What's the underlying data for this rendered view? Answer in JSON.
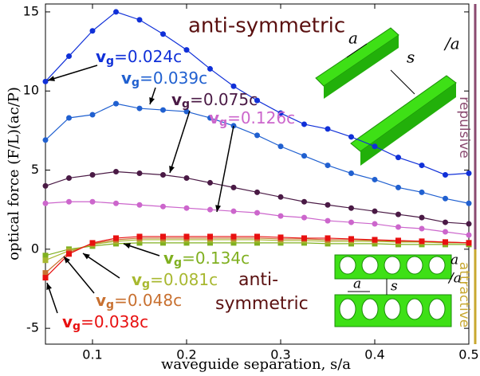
{
  "chart_data": {
    "type": "line",
    "xlabel": "waveguide separation, s/a",
    "ylabel": "optical force (F/L)(ac/P)",
    "xlim": [
      0.05,
      0.5
    ],
    "ylim": [
      -6,
      15.5
    ],
    "xticks": [
      0.1,
      0.2,
      0.3,
      0.4,
      0.5
    ],
    "yticks": [
      -5,
      0,
      5,
      10,
      15
    ],
    "grid": false,
    "x": [
      0.05,
      0.075,
      0.1,
      0.125,
      0.15,
      0.175,
      0.2,
      0.225,
      0.25,
      0.275,
      0.3,
      0.325,
      0.35,
      0.375,
      0.4,
      0.425,
      0.45,
      0.475,
      0.5
    ],
    "velocity_symbol": "v",
    "velocity_subscript": "g",
    "series": [
      {
        "name": "=0.024c",
        "color": "#1030d8",
        "marker": "circle",
        "values": [
          10.6,
          12.2,
          13.8,
          15.0,
          14.5,
          13.6,
          12.6,
          11.4,
          10.3,
          9.4,
          8.6,
          7.9,
          7.6,
          7.1,
          6.5,
          5.8,
          5.3,
          4.7,
          4.8
        ]
      },
      {
        "name": "=0.039c",
        "color": "#2060d0",
        "marker": "circle",
        "values": [
          6.9,
          8.3,
          8.5,
          9.2,
          8.9,
          8.8,
          8.7,
          8.3,
          7.8,
          7.2,
          6.5,
          5.9,
          5.3,
          4.8,
          4.4,
          3.9,
          3.6,
          3.2,
          2.9
        ]
      },
      {
        "name": "=0.075c",
        "color": "#4a1a45",
        "marker": "circle",
        "values": [
          4.0,
          4.5,
          4.7,
          4.9,
          4.8,
          4.7,
          4.5,
          4.2,
          3.9,
          3.6,
          3.3,
          3.0,
          2.8,
          2.6,
          2.4,
          2.2,
          2.0,
          1.7,
          1.6
        ]
      },
      {
        "name": "=0.126c",
        "color": "#cc66cc",
        "marker": "circle",
        "values": [
          2.9,
          3.0,
          3.0,
          2.9,
          2.8,
          2.7,
          2.6,
          2.5,
          2.4,
          2.3,
          2.1,
          2.0,
          1.8,
          1.7,
          1.6,
          1.4,
          1.3,
          1.1,
          0.9
        ]
      },
      {
        "name": "=0.134c",
        "color": "#80b020",
        "marker": "square",
        "values": [
          -0.4,
          0.0,
          0.2,
          0.35,
          0.4,
          0.4,
          0.4,
          0.4,
          0.4,
          0.4,
          0.4,
          0.4,
          0.35,
          0.35,
          0.35,
          0.3,
          0.3,
          0.3,
          0.3
        ]
      },
      {
        "name": "=0.081c",
        "color": "#a8b830",
        "marker": "square",
        "values": [
          -0.7,
          -0.1,
          0.3,
          0.5,
          0.6,
          0.6,
          0.6,
          0.6,
          0.6,
          0.6,
          0.55,
          0.55,
          0.5,
          0.5,
          0.5,
          0.45,
          0.45,
          0.4,
          0.4
        ]
      },
      {
        "name": "=0.048c",
        "color": "#c87030",
        "marker": "square",
        "values": [
          -1.5,
          -0.2,
          0.35,
          0.6,
          0.7,
          0.7,
          0.7,
          0.7,
          0.7,
          0.7,
          0.65,
          0.65,
          0.6,
          0.6,
          0.55,
          0.5,
          0.5,
          0.45,
          0.4
        ]
      },
      {
        "name": "=0.038c",
        "color": "#e81010",
        "marker": "square",
        "values": [
          -1.8,
          -0.3,
          0.4,
          0.7,
          0.8,
          0.8,
          0.8,
          0.8,
          0.8,
          0.8,
          0.75,
          0.7,
          0.7,
          0.65,
          0.6,
          0.55,
          0.5,
          0.45,
          0.4
        ]
      }
    ],
    "annotations": {
      "upper_mode": "anti-symmetric",
      "lower_mode_1": "anti-",
      "lower_mode_2": "symmetric",
      "repulsive": "repulsive",
      "attractive": "attractive"
    },
    "inset_labels": {
      "top_a1": "a",
      "top_s": "s",
      "top_a2": "/a",
      "bottom_a1": "a",
      "bottom_a2": "/a",
      "bottom_a3": "a",
      "bottom_s": "s"
    }
  }
}
